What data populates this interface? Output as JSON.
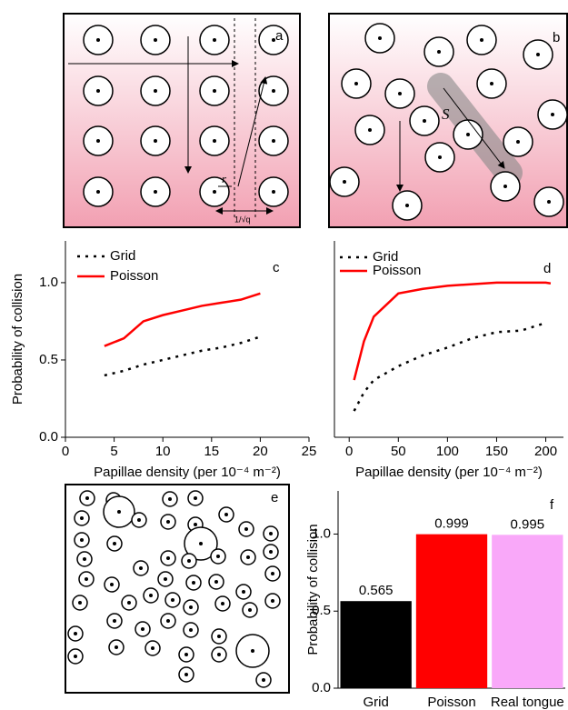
{
  "panels": {
    "a": {
      "label": "a",
      "radius": "r",
      "spacing": "1/√q"
    },
    "b": {
      "label": "b",
      "path": "S"
    },
    "e": {
      "label": "e"
    }
  },
  "chart_data": [
    {
      "type": "line",
      "panel_label": "c",
      "y_label": "Probability of collision",
      "x_label": "Papillae density (per 10⁻⁴ m⁻²)",
      "x": [
        4,
        6,
        8,
        10,
        12,
        14,
        16,
        18,
        20
      ],
      "series": [
        {
          "name": "Grid",
          "color": "#000000",
          "line_style": "dotted",
          "values": [
            0.4,
            0.43,
            0.47,
            0.5,
            0.53,
            0.56,
            0.58,
            0.61,
            0.65
          ]
        },
        {
          "name": "Poisson",
          "color": "#ff0000",
          "line_style": "solid",
          "values": [
            0.59,
            0.64,
            0.75,
            0.79,
            0.82,
            0.85,
            0.87,
            0.89,
            0.93
          ]
        }
      ],
      "xlim": [
        0,
        25
      ],
      "xticks": [
        0,
        5,
        10,
        15,
        20,
        25
      ],
      "ylim": [
        0,
        1.27
      ],
      "yticks": [
        {
          "value": 0,
          "label": "0.0"
        },
        {
          "value": 0.5,
          "label": "0.5"
        },
        {
          "value": 1,
          "label": "1.0"
        }
      ],
      "legend": "top-left"
    },
    {
      "type": "line",
      "panel_label": "d",
      "x_label": "Papillae density (per 10⁻⁴ m⁻²)",
      "x": [
        5,
        15,
        25,
        50,
        75,
        100,
        125,
        150,
        175,
        200,
        205
      ],
      "series": [
        {
          "name": "Grid",
          "color": "#000000",
          "line_style": "dotted",
          "values": [
            0.17,
            0.29,
            0.37,
            0.46,
            0.53,
            0.58,
            0.64,
            0.68,
            0.69,
            0.74,
            null
          ]
        },
        {
          "name": "Poisson",
          "color": "#ff0000",
          "line_style": "solid",
          "values": [
            0.37,
            0.62,
            0.78,
            0.93,
            0.96,
            0.98,
            0.99,
            1.0,
            1.0,
            1.0,
            0.995
          ]
        }
      ],
      "xlim": [
        -15,
        218
      ],
      "xticks": [
        0,
        50,
        100,
        150,
        200
      ],
      "ylim": [
        0,
        1.27
      ],
      "legend": "top-left"
    },
    {
      "type": "bar",
      "panel_label": "f",
      "y_label": "Probability of collision",
      "categories": [
        "Grid",
        "Poisson",
        "Real tongue"
      ],
      "values": [
        0.565,
        0.999,
        0.995
      ],
      "colors": [
        "#000000",
        "#ff0000",
        "#f9a8f9"
      ],
      "ylim": [
        0,
        1.28
      ],
      "yticks": [
        {
          "value": 0,
          "label": "0.0"
        },
        {
          "value": 0.5,
          "label": "0.5"
        },
        {
          "value": 1,
          "label": "1.0"
        }
      ]
    }
  ]
}
